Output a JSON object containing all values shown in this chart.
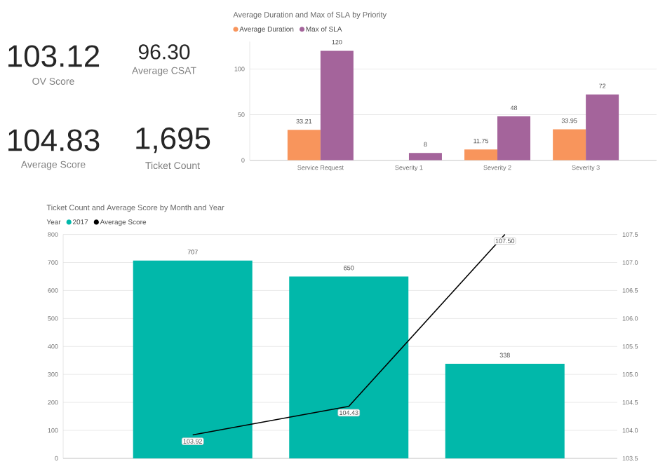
{
  "chart_data": [
    {
      "type": "other",
      "annotations": [
        "103.12",
        "OV Score",
        "96.30",
        "Average CSAT",
        "104.83",
        "Average Score",
        "1,695",
        "Ticket Count"
      ]
    },
    {
      "type": "bar",
      "title": "Average Duration and Max of SLA by Priority",
      "categories": [
        "Service Request",
        "Severity 1",
        "Severity 2",
        "Severity 3"
      ],
      "series": [
        {
          "name": "Average Duration",
          "color": "#f8955c",
          "values": [
            33.21,
            null,
            11.75,
            33.95
          ]
        },
        {
          "name": "Max of SLA",
          "color": "#a4649b",
          "values": [
            120,
            8,
            48,
            72
          ]
        }
      ],
      "ylim": [
        0,
        130
      ],
      "yticks": [
        0,
        50,
        100
      ],
      "grid": "y",
      "legend": "top left",
      "data_labels": true
    },
    {
      "type": "bar",
      "title": "Ticket Count and Average Score by Month and Year",
      "legend_title": "Year",
      "categories": [
        null,
        null,
        null
      ],
      "series": [
        {
          "name": "2017",
          "color": "#01b8aa",
          "values": [
            707,
            650,
            338
          ]
        },
        {
          "name": "Average Score",
          "type": "line",
          "axis": "y2",
          "color": "#000000",
          "values": [
            103.92,
            104.43,
            107.5
          ],
          "value_labels": [
            "103.92",
            "104.43",
            "107.50"
          ]
        }
      ],
      "ylim": [
        0,
        800
      ],
      "yticks": [
        0,
        100,
        200,
        300,
        400,
        500,
        600,
        700,
        800
      ],
      "y2lim": [
        103.5,
        107.5
      ],
      "y2ticks": [
        {
          "value": 103.5,
          "label": "103.5"
        },
        {
          "value": 104,
          "label": "104.0"
        },
        {
          "value": 104.5,
          "label": "104.5"
        },
        {
          "value": 105,
          "label": "105.0"
        },
        {
          "value": 105.5,
          "label": "105.5"
        },
        {
          "value": 106,
          "label": "106.0"
        },
        {
          "value": 106.5,
          "label": "106.5"
        },
        {
          "value": 107,
          "label": "107.0"
        },
        {
          "value": 107.5,
          "label": "107.5"
        }
      ],
      "grid": "y",
      "legend": "top left",
      "data_labels": true,
      "tick_labels": "y"
    }
  ]
}
